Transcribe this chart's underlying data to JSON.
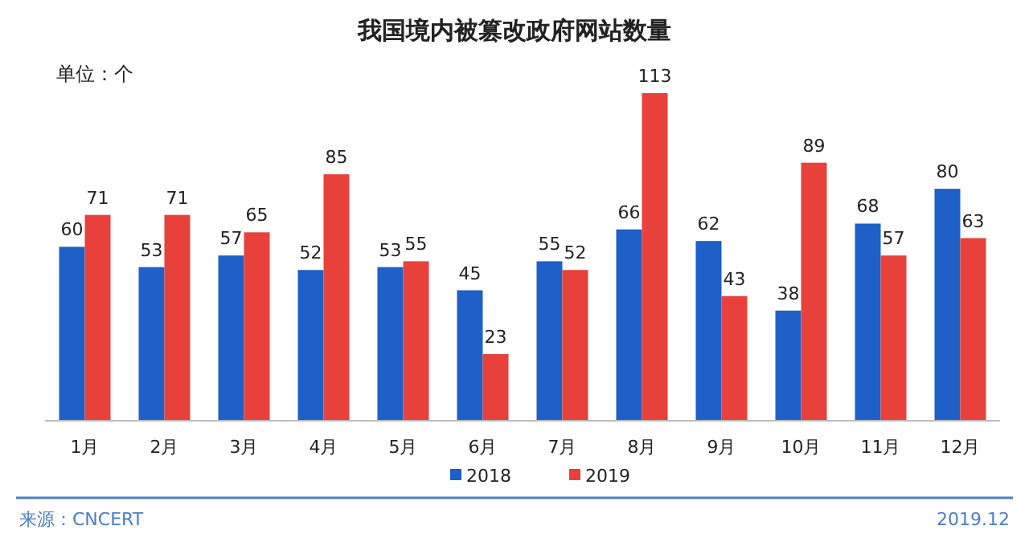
{
  "chart_data": {
    "type": "bar",
    "title": "我国境内被篡改政府网站数量",
    "ylabel": "单位：个",
    "categories": [
      "1月",
      "2月",
      "3月",
      "4月",
      "5月",
      "6月",
      "7月",
      "8月",
      "9月",
      "10月",
      "11月",
      "12月"
    ],
    "series": [
      {
        "name": "2018",
        "color": "#1f5fc8",
        "values": [
          60,
          53,
          57,
          52,
          53,
          45,
          55,
          66,
          62,
          38,
          68,
          80
        ]
      },
      {
        "name": "2019",
        "color": "#e8413c",
        "values": [
          71,
          71,
          65,
          85,
          55,
          23,
          52,
          113,
          43,
          89,
          57,
          63
        ]
      }
    ],
    "data_labels": true,
    "legend": "bottom",
    "annotations": [
      "来源：CNCERT",
      "2019.12"
    ]
  }
}
